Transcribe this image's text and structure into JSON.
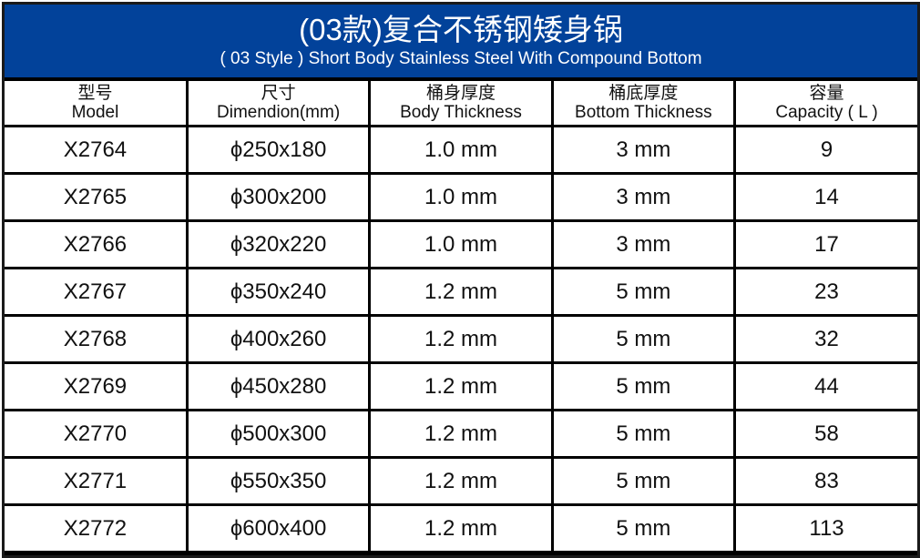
{
  "title": {
    "cn": "(03款)复合不锈钢矮身锅",
    "en": "( 03 Style ) Short Body Stainless Steel With Compound Bottom"
  },
  "columns": [
    {
      "cn": "型号",
      "en": "Model"
    },
    {
      "cn": "尺寸",
      "en": "Dimendion(mm)"
    },
    {
      "cn": "桶身厚度",
      "en": "Body Thickness"
    },
    {
      "cn": "桶底厚度",
      "en": "Bottom Thickness"
    },
    {
      "cn": "容量",
      "en": "Capacity ( L )"
    }
  ],
  "rows": [
    [
      "X2764",
      "ϕ250x180",
      "1.0 mm",
      "3 mm",
      "9"
    ],
    [
      "X2765",
      "ϕ300x200",
      "1.0 mm",
      "3 mm",
      "14"
    ],
    [
      "X2766",
      "ϕ320x220",
      "1.0 mm",
      "3 mm",
      "17"
    ],
    [
      "X2767",
      "ϕ350x240",
      "1.2 mm",
      "5 mm",
      "23"
    ],
    [
      "X2768",
      "ϕ400x260",
      "1.2 mm",
      "5 mm",
      "32"
    ],
    [
      "X2769",
      "ϕ450x280",
      "1.2 mm",
      "5 mm",
      "44"
    ],
    [
      "X2770",
      "ϕ500x300",
      "1.2 mm",
      "5 mm",
      "58"
    ],
    [
      "X2771",
      "ϕ550x350",
      "1.2 mm",
      "5 mm",
      "83"
    ],
    [
      "X2772",
      "ϕ600x400",
      "1.2 mm",
      "5 mm",
      "113"
    ]
  ],
  "colors": {
    "header_blue": "#02429a",
    "border": "#000000"
  }
}
